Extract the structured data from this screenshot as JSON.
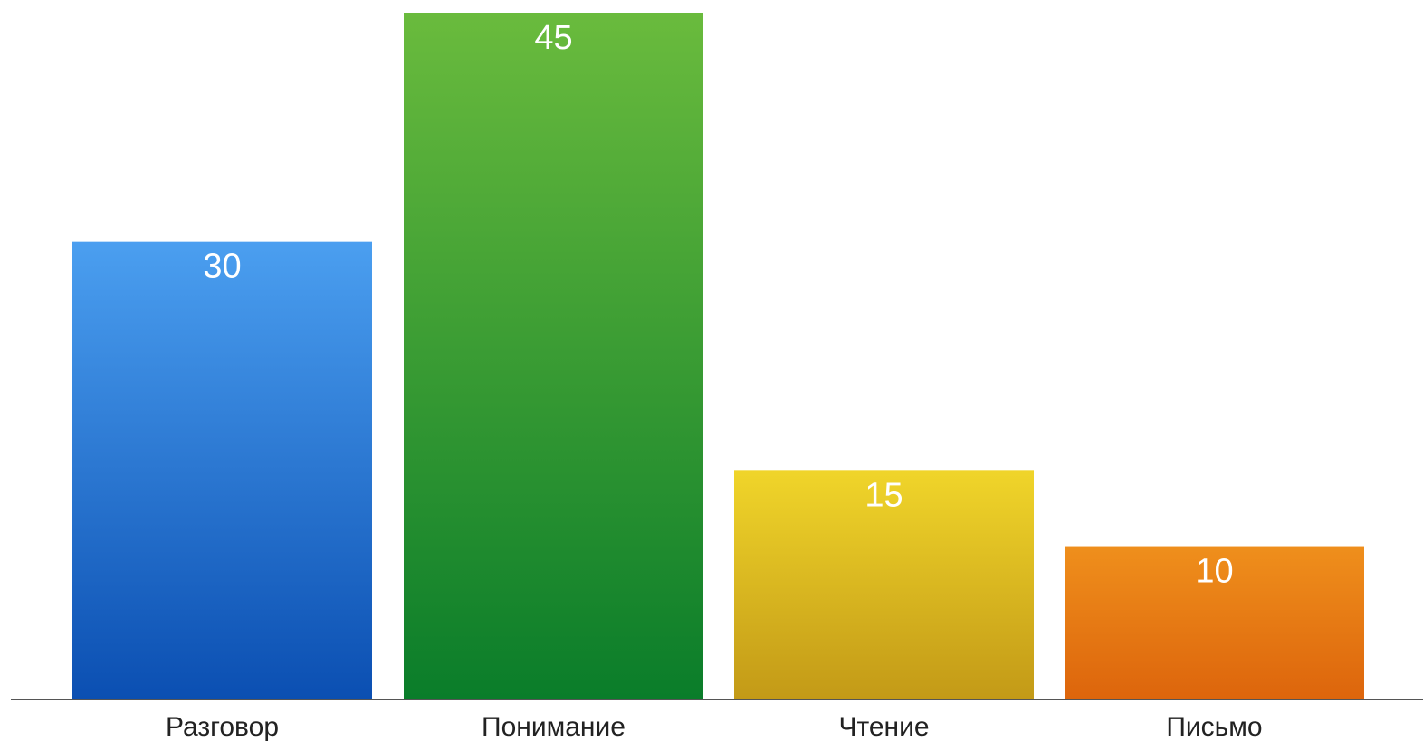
{
  "chart_data": {
    "type": "bar",
    "categories": [
      "Разговор",
      "Понимание",
      "Чтение",
      "Письмо"
    ],
    "values": [
      30,
      45,
      15,
      10
    ],
    "ylim": [
      0,
      45
    ],
    "grid": false,
    "data_labels": true,
    "colors": [
      {
        "top": "#4b9ff0",
        "bottom": "#0b4fb2"
      },
      {
        "top": "#6abb3d",
        "bottom": "#0a7d2a"
      },
      {
        "top": "#f0d52a",
        "bottom": "#c39a17"
      },
      {
        "top": "#ef8f1c",
        "bottom": "#dd650c"
      }
    ]
  }
}
